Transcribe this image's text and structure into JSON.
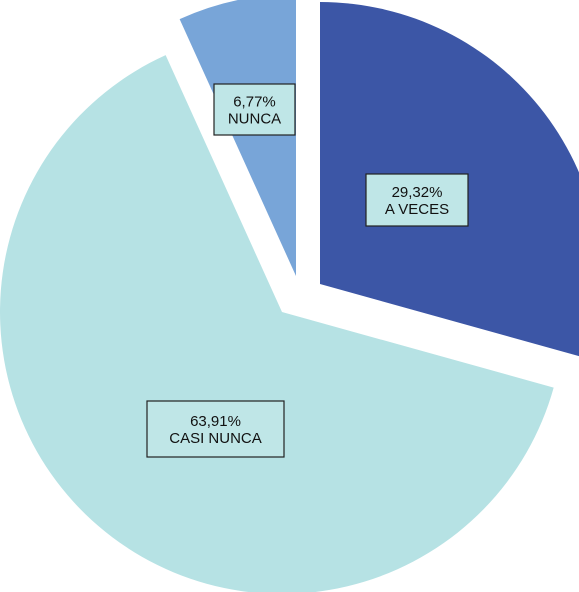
{
  "chart_data": {
    "type": "pie",
    "slices": [
      {
        "label": "A VECES",
        "value": 29.32,
        "percent_label": "29,32%",
        "color": "#3c56a6",
        "exploded": true
      },
      {
        "label": "CASI NUNCA",
        "value": 63.91,
        "percent_label": "63,91%",
        "color": "#b6e2e4",
        "exploded": true
      },
      {
        "label": "NUNCA",
        "value": 6.77,
        "percent_label": "6,77%",
        "color": "#78a5d8",
        "exploded": true
      }
    ],
    "label_box_color": "#bfe6e7",
    "legend": "none"
  }
}
